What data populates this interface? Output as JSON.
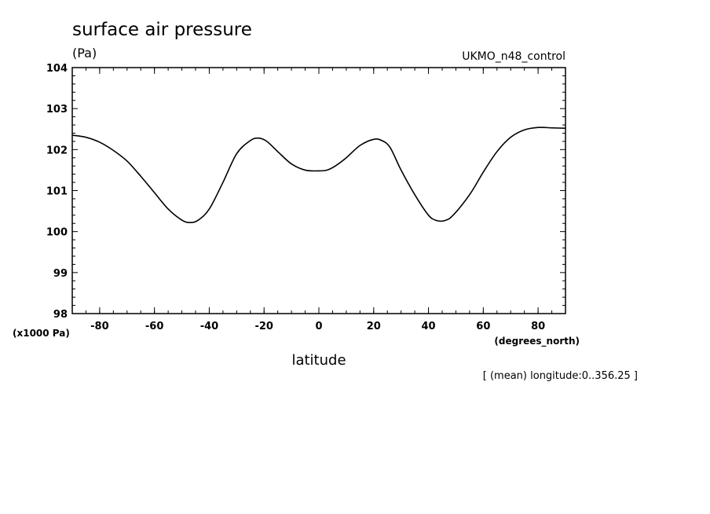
{
  "chart_data": {
    "type": "line",
    "title": "surface air pressure",
    "units": "(Pa)",
    "source_label": "UKMO_n48_control",
    "y_scale_label": "(x1000 Pa)",
    "x_units_label": "(degrees_north)",
    "xlabel": "latitude",
    "note": "[ (mean) longitude:0..356.25 ]",
    "xlim": [
      -90,
      90
    ],
    "ylim": [
      98,
      104
    ],
    "x_ticks": [
      -80,
      -60,
      -40,
      -20,
      0,
      20,
      40,
      60,
      80
    ],
    "x_tick_labels": [
      "-80",
      "-60",
      "-40",
      "-20",
      "0",
      "20",
      "40",
      "60",
      "80"
    ],
    "y_ticks": [
      98,
      99,
      100,
      101,
      102,
      103,
      104
    ],
    "y_tick_labels": [
      "98",
      "99",
      "100",
      "101",
      "102",
      "103",
      "104"
    ],
    "grid": false,
    "line_color": "#000000",
    "series": [
      {
        "x": [
          -90,
          -85,
          -80,
          -75,
          -70,
          -65,
          -60,
          -55,
          -50,
          -47,
          -44,
          -40,
          -35,
          -30,
          -25,
          -22,
          -19,
          -15,
          -10,
          -5,
          0,
          3,
          6,
          10,
          15,
          20,
          23,
          26,
          30,
          35,
          40,
          43,
          46,
          49,
          55,
          60,
          65,
          70,
          75,
          80,
          85,
          90
        ],
        "y": [
          102.35,
          102.3,
          102.18,
          101.98,
          101.72,
          101.35,
          100.95,
          100.55,
          100.28,
          100.22,
          100.28,
          100.55,
          101.2,
          101.9,
          102.22,
          102.28,
          102.2,
          101.95,
          101.65,
          101.5,
          101.48,
          101.5,
          101.6,
          101.8,
          102.1,
          102.25,
          102.22,
          102.05,
          101.5,
          100.9,
          100.4,
          100.27,
          100.27,
          100.4,
          100.9,
          101.45,
          101.95,
          102.3,
          102.48,
          102.54,
          102.53,
          102.52
        ]
      }
    ]
  }
}
